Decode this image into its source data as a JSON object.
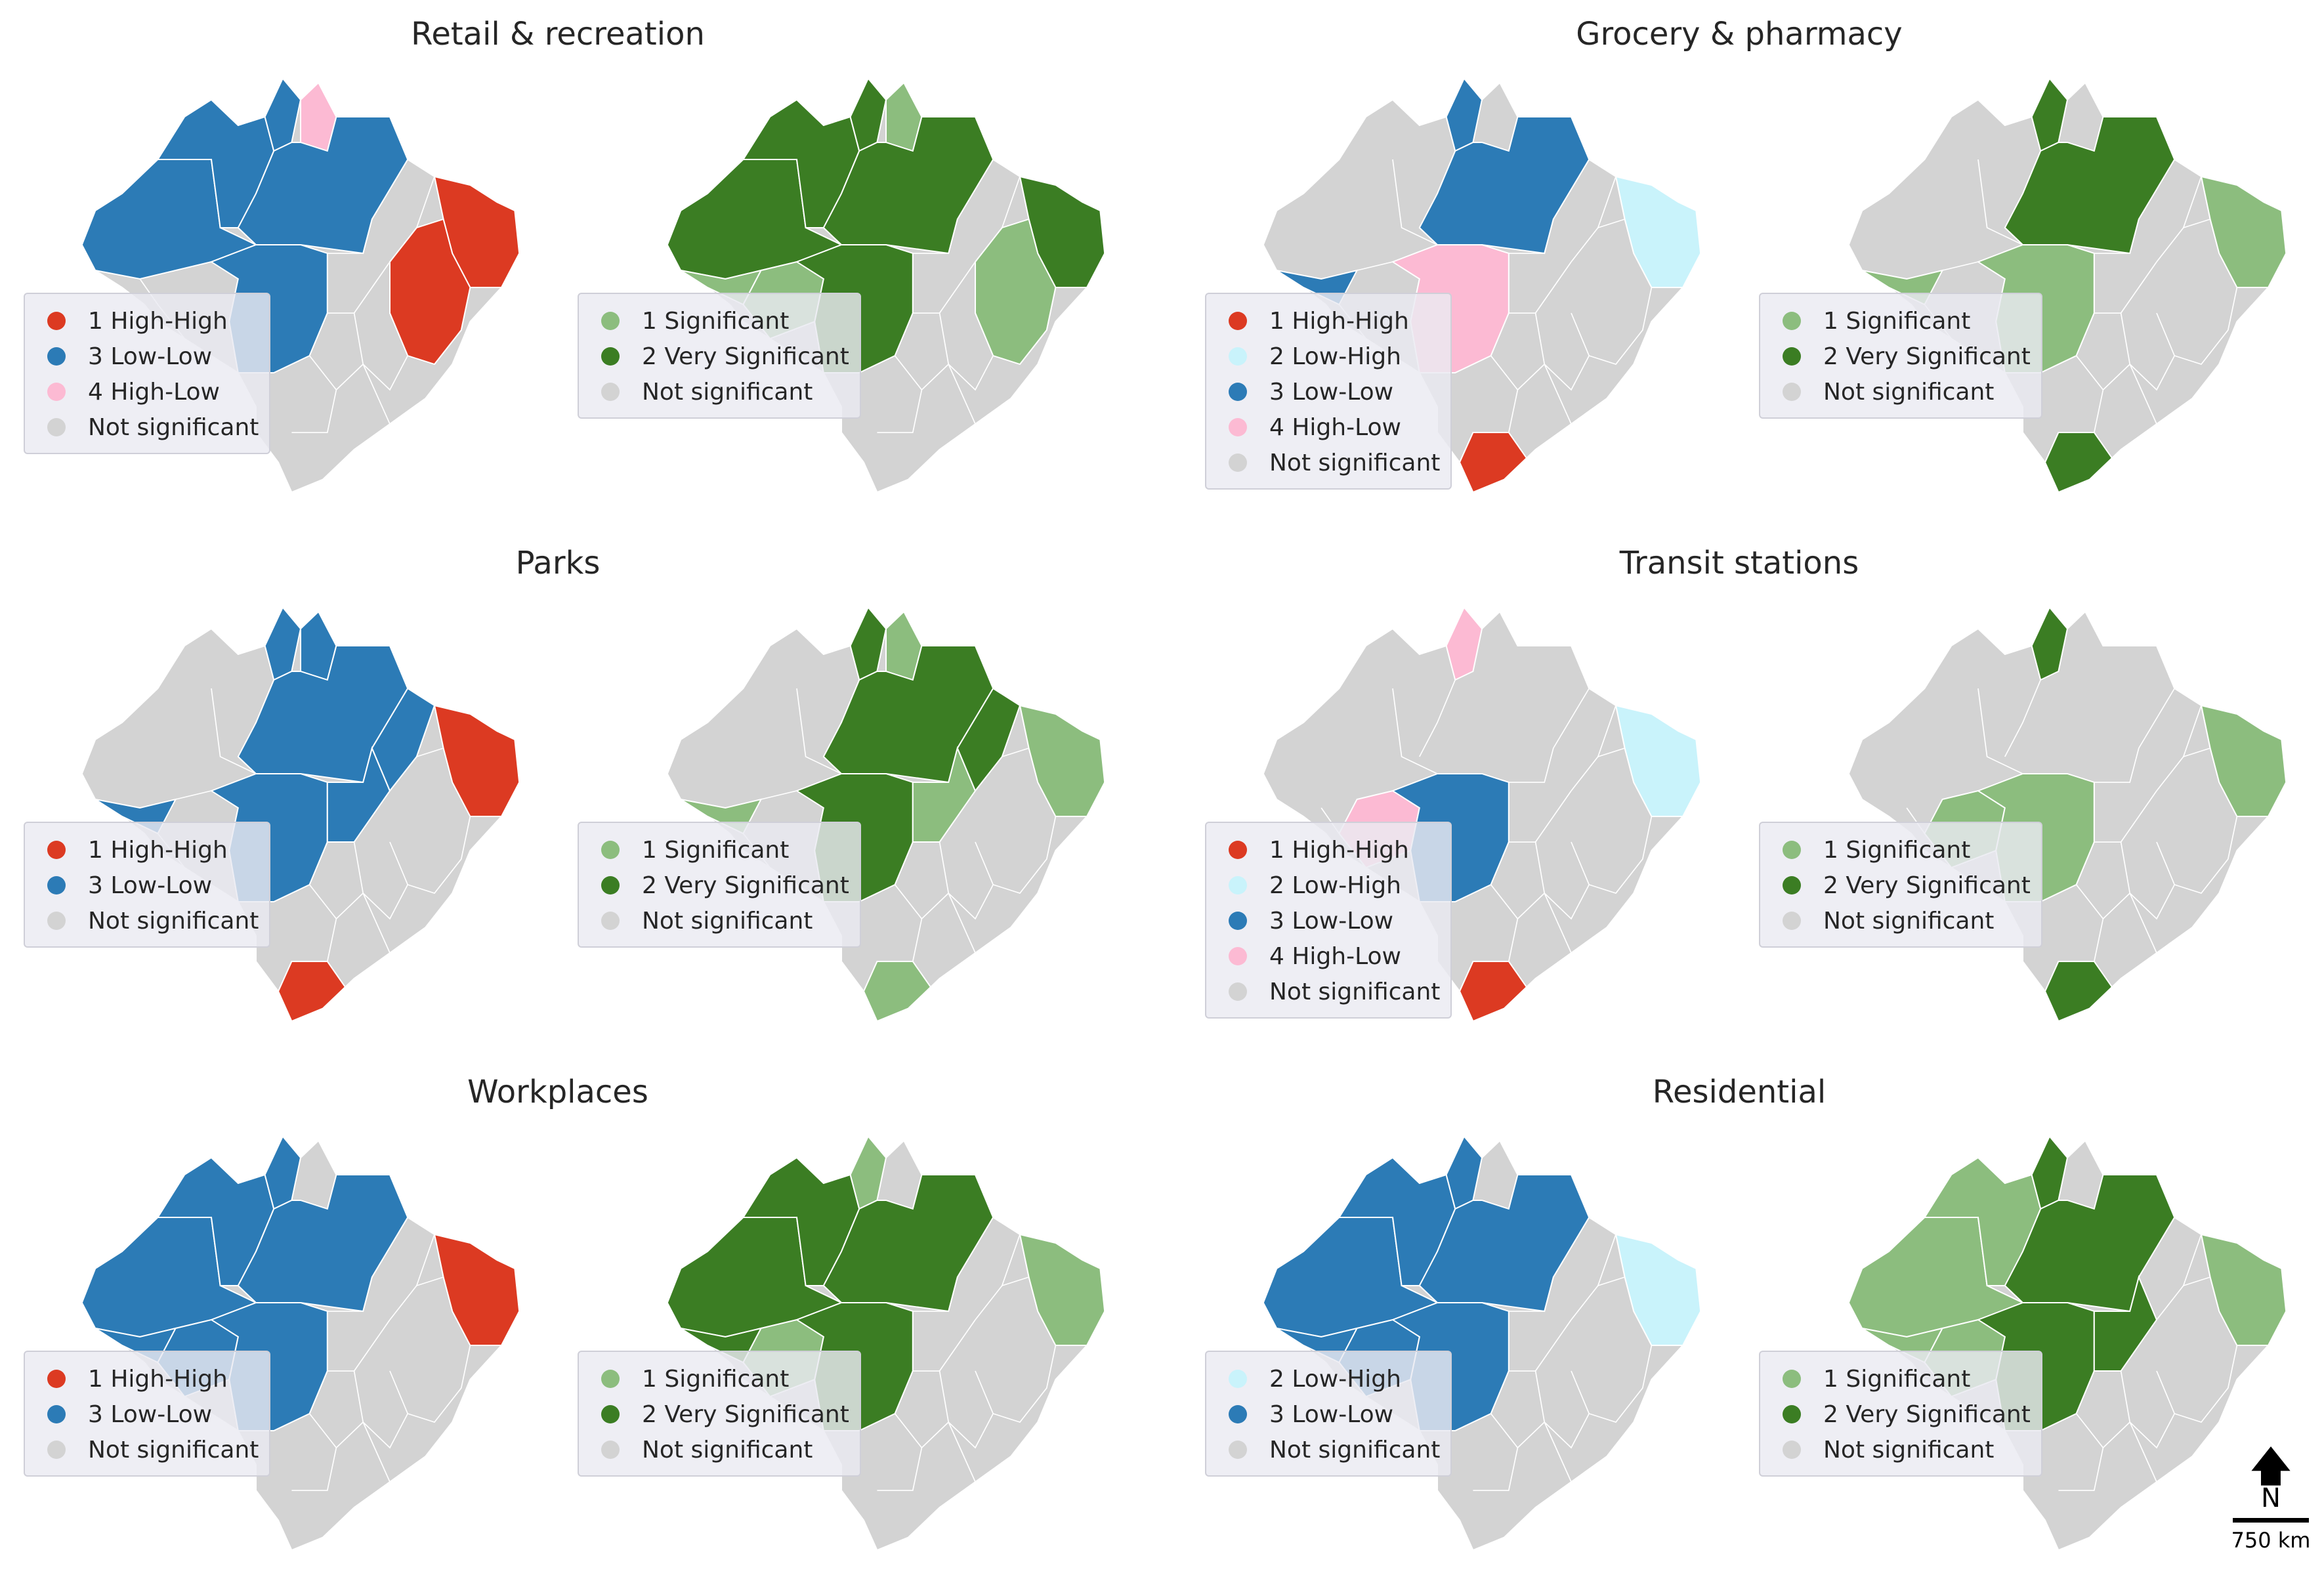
{
  "colors": {
    "high_high": "#dc3a22",
    "low_high": "#c9f3fb",
    "low_low": "#2c7bb6",
    "high_low": "#fcbad3",
    "not_significant": "#d3d3d3",
    "significant": "#8cbd7e",
    "very_significant": "#3b7d23",
    "border": "#ffffff"
  },
  "north_arrow": {
    "icon": "north-arrow-icon",
    "letter": "N",
    "scale_label": "750 km"
  },
  "panels": [
    {
      "title": "Retail & recreation",
      "cluster_legend": [
        {
          "label": "1 High-High",
          "color_key": "high_high"
        },
        {
          "label": "3 Low-Low",
          "color_key": "low_low"
        },
        {
          "label": "4 High-Low",
          "color_key": "high_low"
        },
        {
          "label": "Not significant",
          "color_key": "not_significant"
        }
      ],
      "significance_legend": [
        {
          "label": "1 Significant",
          "color_key": "significant"
        },
        {
          "label": "2 Very Significant",
          "color_key": "very_significant"
        },
        {
          "label": "Not significant",
          "color_key": "not_significant"
        }
      ],
      "cluster_regions": {
        "west": "low_low",
        "north": "low_low",
        "roraima": "low_low",
        "amapa": "high_low",
        "para": "low_low",
        "mato_grosso": "low_low",
        "ne_east": "high_high",
        "bahia": "high_high"
      },
      "significance_regions": {
        "west": "very_significant",
        "north": "very_significant",
        "roraima": "very_significant",
        "amapa": "significant",
        "para": "very_significant",
        "mato_grosso": "very_significant",
        "acre": "significant",
        "rondonia": "significant",
        "ne_east": "very_significant",
        "bahia": "significant"
      }
    },
    {
      "title": "Grocery & pharmacy",
      "cluster_legend": [
        {
          "label": "1 High-High",
          "color_key": "high_high"
        },
        {
          "label": "2 Low-High",
          "color_key": "low_high"
        },
        {
          "label": "3 Low-Low",
          "color_key": "low_low"
        },
        {
          "label": "4 High-Low",
          "color_key": "high_low"
        },
        {
          "label": "Not significant",
          "color_key": "not_significant"
        }
      ],
      "significance_legend": [
        {
          "label": "1 Significant",
          "color_key": "significant"
        },
        {
          "label": "2 Very Significant",
          "color_key": "very_significant"
        },
        {
          "label": "Not significant",
          "color_key": "not_significant"
        }
      ],
      "cluster_regions": {
        "roraima": "low_low",
        "para": "low_low",
        "acre": "low_low",
        "mato_grosso": "high_low",
        "ne_east": "low_high",
        "south": "high_high"
      },
      "significance_regions": {
        "roraima": "very_significant",
        "para": "very_significant",
        "acre": "significant",
        "mato_grosso": "significant",
        "ne_east": "significant",
        "south": "very_significant"
      }
    },
    {
      "title": "Parks",
      "cluster_legend": [
        {
          "label": "1 High-High",
          "color_key": "high_high"
        },
        {
          "label": "3 Low-Low",
          "color_key": "low_low"
        },
        {
          "label": "Not significant",
          "color_key": "not_significant"
        }
      ],
      "significance_legend": [
        {
          "label": "1 Significant",
          "color_key": "significant"
        },
        {
          "label": "2 Very Significant",
          "color_key": "very_significant"
        },
        {
          "label": "Not significant",
          "color_key": "not_significant"
        }
      ],
      "cluster_regions": {
        "roraima": "low_low",
        "amapa": "low_low",
        "para": "low_low",
        "mato_grosso": "low_low",
        "tocantins": "low_low",
        "maranhao": "low_low",
        "acre": "low_low",
        "ne_east": "high_high",
        "south": "high_high"
      },
      "significance_regions": {
        "roraima": "very_significant",
        "amapa": "significant",
        "para": "very_significant",
        "mato_grosso": "very_significant",
        "tocantins": "significant",
        "maranhao": "very_significant",
        "acre": "significant",
        "ne_east": "significant",
        "south": "significant"
      }
    },
    {
      "title": "Transit stations",
      "cluster_legend": [
        {
          "label": "1 High-High",
          "color_key": "high_high"
        },
        {
          "label": "2 Low-High",
          "color_key": "low_high"
        },
        {
          "label": "3 Low-Low",
          "color_key": "low_low"
        },
        {
          "label": "4 High-Low",
          "color_key": "high_low"
        },
        {
          "label": "Not significant",
          "color_key": "not_significant"
        }
      ],
      "significance_legend": [
        {
          "label": "1 Significant",
          "color_key": "significant"
        },
        {
          "label": "2 Very Significant",
          "color_key": "very_significant"
        },
        {
          "label": "Not significant",
          "color_key": "not_significant"
        }
      ],
      "cluster_regions": {
        "roraima": "high_low",
        "rondonia": "high_low",
        "mato_grosso": "low_low",
        "ne_east": "low_high",
        "south": "high_high"
      },
      "significance_regions": {
        "roraima": "very_significant",
        "rondonia": "significant",
        "mato_grosso": "significant",
        "ne_east": "significant",
        "south": "very_significant"
      }
    },
    {
      "title": "Workplaces",
      "cluster_legend": [
        {
          "label": "1 High-High",
          "color_key": "high_high"
        },
        {
          "label": "3 Low-Low",
          "color_key": "low_low"
        },
        {
          "label": "Not significant",
          "color_key": "not_significant"
        }
      ],
      "significance_legend": [
        {
          "label": "1 Significant",
          "color_key": "significant"
        },
        {
          "label": "2 Very Significant",
          "color_key": "very_significant"
        },
        {
          "label": "Not significant",
          "color_key": "not_significant"
        }
      ],
      "cluster_regions": {
        "west": "low_low",
        "north": "low_low",
        "roraima": "low_low",
        "para": "low_low",
        "mato_grosso": "low_low",
        "acre": "low_low",
        "rondonia": "low_low",
        "ne_east": "high_high"
      },
      "significance_regions": {
        "west": "very_significant",
        "north": "very_significant",
        "roraima": "significant",
        "para": "very_significant",
        "mato_grosso": "very_significant",
        "acre": "very_significant",
        "rondonia": "significant",
        "ne_east": "significant"
      }
    },
    {
      "title": "Residential",
      "cluster_legend": [
        {
          "label": "2 Low-High",
          "color_key": "low_high"
        },
        {
          "label": "3 Low-Low",
          "color_key": "low_low"
        },
        {
          "label": "Not significant",
          "color_key": "not_significant"
        }
      ],
      "significance_legend": [
        {
          "label": "1 Significant",
          "color_key": "significant"
        },
        {
          "label": "2 Very Significant",
          "color_key": "very_significant"
        },
        {
          "label": "Not significant",
          "color_key": "not_significant"
        }
      ],
      "cluster_regions": {
        "west": "low_low",
        "north": "low_low",
        "roraima": "low_low",
        "para": "low_low",
        "mato_grosso": "low_low",
        "acre": "low_low",
        "rondonia": "low_low",
        "ne_east": "low_high"
      },
      "significance_regions": {
        "west": "significant",
        "north": "significant",
        "roraima": "very_significant",
        "para": "very_significant",
        "mato_grosso": "very_significant",
        "tocantins": "very_significant",
        "acre": "significant",
        "rondonia": "significant",
        "ne_east": "significant"
      }
    }
  ]
}
